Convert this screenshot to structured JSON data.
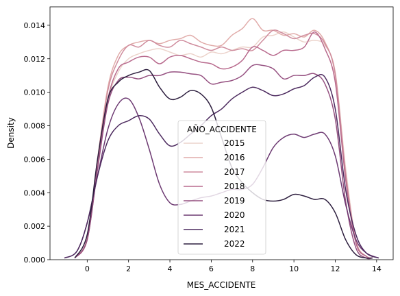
{
  "chart_data": {
    "type": "line",
    "title": "",
    "xlabel": "MES_ACCIDENTE",
    "ylabel": "Density",
    "xlim": [
      -1.8,
      14.8
    ],
    "ylim": [
      0,
      0.0151
    ],
    "xticks": [
      0,
      2,
      4,
      6,
      8,
      10,
      12,
      14
    ],
    "yticks": [
      0.0,
      0.002,
      0.004,
      0.006,
      0.008,
      0.01,
      0.012,
      0.014
    ],
    "ytick_labels": [
      "0.000",
      "0.002",
      "0.004",
      "0.006",
      "0.008",
      "0.010",
      "0.012",
      "0.014"
    ],
    "grid": false,
    "legend": {
      "title": "AÑO_ACCIDENTE",
      "placement": "center"
    },
    "series": [
      {
        "name": "2015",
        "color": "#ecd3cb",
        "x": [
          -0.6,
          0,
          0.5,
          1,
          1.5,
          2,
          2.5,
          3,
          3.5,
          4,
          4.5,
          5,
          5.5,
          6,
          6.5,
          7,
          7.5,
          8,
          8.5,
          9,
          9.5,
          10,
          10.5,
          11,
          11.5,
          12,
          12.5,
          13,
          13.5,
          13.8
        ],
        "y": [
          0.0001,
          0.0012,
          0.0055,
          0.0095,
          0.0112,
          0.012,
          0.0123,
          0.0125,
          0.0126,
          0.0124,
          0.0122,
          0.0123,
          0.0121,
          0.0124,
          0.0123,
          0.0125,
          0.0127,
          0.0127,
          0.0133,
          0.0134,
          0.0136,
          0.0133,
          0.013,
          0.0131,
          0.0128,
          0.0112,
          0.0055,
          0.0012,
          0.0002,
          0.0001
        ]
      },
      {
        "name": "2016",
        "color": "#e1acaa",
        "x": [
          -0.6,
          0,
          0.5,
          1,
          1.5,
          2,
          2.5,
          3,
          3.5,
          4,
          4.5,
          5,
          5.5,
          6,
          6.5,
          7,
          7.5,
          8,
          8.5,
          9,
          9.5,
          10,
          10.5,
          11,
          11.5,
          12,
          12.5,
          13,
          13.5,
          13.8
        ],
        "y": [
          0.0001,
          0.0013,
          0.006,
          0.0103,
          0.0122,
          0.0128,
          0.013,
          0.0131,
          0.0129,
          0.0131,
          0.0132,
          0.0134,
          0.013,
          0.0128,
          0.0128,
          0.0134,
          0.0138,
          0.0144,
          0.0137,
          0.0137,
          0.0134,
          0.0135,
          0.0133,
          0.0137,
          0.013,
          0.011,
          0.005,
          0.001,
          0.0002,
          0.0001
        ]
      },
      {
        "name": "2017",
        "color": "#cf8c9d",
        "x": [
          -0.6,
          0,
          0.5,
          1,
          1.5,
          2,
          2.5,
          3,
          3.5,
          4,
          4.5,
          5,
          5.5,
          6,
          6.5,
          7,
          7.5,
          8,
          8.5,
          9,
          9.5,
          10,
          10.5,
          11,
          11.5,
          12,
          12.5,
          13,
          13.5,
          13.8
        ],
        "y": [
          0.0001,
          0.0012,
          0.0058,
          0.0101,
          0.0119,
          0.0128,
          0.0127,
          0.0131,
          0.0128,
          0.0127,
          0.0131,
          0.0129,
          0.0127,
          0.0125,
          0.0127,
          0.0125,
          0.0126,
          0.0125,
          0.0131,
          0.0137,
          0.0135,
          0.0132,
          0.0134,
          0.0135,
          0.0129,
          0.0111,
          0.0052,
          0.0011,
          0.0002,
          0.0001
        ]
      },
      {
        "name": "2018",
        "color": "#b86a8d",
        "x": [
          -0.6,
          0,
          0.5,
          1,
          1.5,
          2,
          2.5,
          3,
          3.5,
          4,
          4.5,
          5,
          5.5,
          6,
          6.5,
          7,
          7.5,
          8,
          8.5,
          9,
          9.5,
          10,
          10.5,
          11,
          11.5,
          12,
          12.5,
          13,
          13.5,
          13.8
        ],
        "y": [
          0.0001,
          0.0012,
          0.0055,
          0.0096,
          0.0114,
          0.0118,
          0.0121,
          0.0121,
          0.0117,
          0.0121,
          0.0122,
          0.012,
          0.0118,
          0.0117,
          0.0114,
          0.0115,
          0.0119,
          0.0127,
          0.0125,
          0.0122,
          0.0125,
          0.0125,
          0.0127,
          0.0136,
          0.0126,
          0.0106,
          0.0048,
          0.001,
          0.0002,
          0.0001
        ]
      },
      {
        "name": "2019",
        "color": "#955080",
        "x": [
          -0.6,
          0,
          0.5,
          1,
          1.5,
          2,
          2.5,
          3,
          3.5,
          4,
          4.5,
          5,
          5.5,
          6,
          6.5,
          7,
          7.5,
          8,
          8.5,
          9,
          9.5,
          10,
          10.5,
          11,
          11.5,
          12,
          12.5,
          13,
          13.5,
          13.8
        ],
        "y": [
          0.0001,
          0.0012,
          0.0054,
          0.0093,
          0.0107,
          0.0109,
          0.0108,
          0.011,
          0.011,
          0.0112,
          0.0112,
          0.0111,
          0.011,
          0.0105,
          0.0106,
          0.0107,
          0.011,
          0.0116,
          0.0116,
          0.0114,
          0.0108,
          0.011,
          0.011,
          0.0111,
          0.0105,
          0.0084,
          0.0035,
          0.0007,
          0.0001,
          0.0001
        ]
      },
      {
        "name": "2020",
        "color": "#6d3a72",
        "x": [
          -1.1,
          -0.5,
          0,
          0.5,
          1,
          1.5,
          2,
          2.5,
          3,
          3.5,
          4,
          4.5,
          5,
          5.5,
          6,
          6.5,
          7,
          7.5,
          8,
          8.5,
          9,
          9.5,
          10,
          10.5,
          11,
          11.5,
          12,
          12.5,
          13,
          13.5,
          14.1
        ],
        "y": [
          0.0001,
          0.0005,
          0.0022,
          0.005,
          0.0078,
          0.0093,
          0.0096,
          0.0085,
          0.0066,
          0.0045,
          0.0034,
          0.0033,
          0.0035,
          0.0037,
          0.0038,
          0.004,
          0.0042,
          0.0042,
          0.0045,
          0.0055,
          0.0067,
          0.0073,
          0.0075,
          0.0073,
          0.0075,
          0.0075,
          0.0062,
          0.0033,
          0.0012,
          0.0004,
          0.0001
        ]
      },
      {
        "name": "2021",
        "color": "#4c2a5e",
        "x": [
          -1.1,
          -0.5,
          0,
          0.5,
          1,
          1.5,
          2,
          2.5,
          3,
          3.5,
          4,
          4.5,
          5,
          5.5,
          6,
          6.5,
          7,
          7.5,
          8,
          8.5,
          9,
          9.5,
          10,
          10.5,
          11,
          11.5,
          12,
          12.5,
          13,
          13.5,
          14.1
        ],
        "y": [
          0.0001,
          0.0005,
          0.0022,
          0.005,
          0.0071,
          0.008,
          0.0083,
          0.0086,
          0.0084,
          0.0075,
          0.0068,
          0.007,
          0.0075,
          0.008,
          0.0086,
          0.009,
          0.0096,
          0.01,
          0.0103,
          0.0101,
          0.0098,
          0.0099,
          0.0102,
          0.0104,
          0.0109,
          0.0109,
          0.009,
          0.0042,
          0.0015,
          0.0004,
          0.0001
        ]
      },
      {
        "name": "2022",
        "color": "#2d1e3e",
        "x": [
          -0.6,
          0,
          0.5,
          1,
          1.5,
          2,
          2.5,
          3,
          3.5,
          4,
          4.5,
          5,
          5.5,
          6,
          6.5,
          7,
          7.5,
          8,
          8.5,
          9,
          9.5,
          10,
          10.5,
          11,
          11.5,
          12,
          12.5,
          13,
          13.5,
          13.8
        ],
        "y": [
          0.0001,
          0.0015,
          0.006,
          0.0096,
          0.0106,
          0.011,
          0.0112,
          0.0113,
          0.0103,
          0.0096,
          0.0097,
          0.0101,
          0.0099,
          0.0091,
          0.0073,
          0.0055,
          0.0046,
          0.004,
          0.0036,
          0.0035,
          0.0036,
          0.0039,
          0.0038,
          0.0036,
          0.0036,
          0.0028,
          0.0012,
          0.0003,
          0.0001,
          0.0001
        ]
      }
    ]
  }
}
